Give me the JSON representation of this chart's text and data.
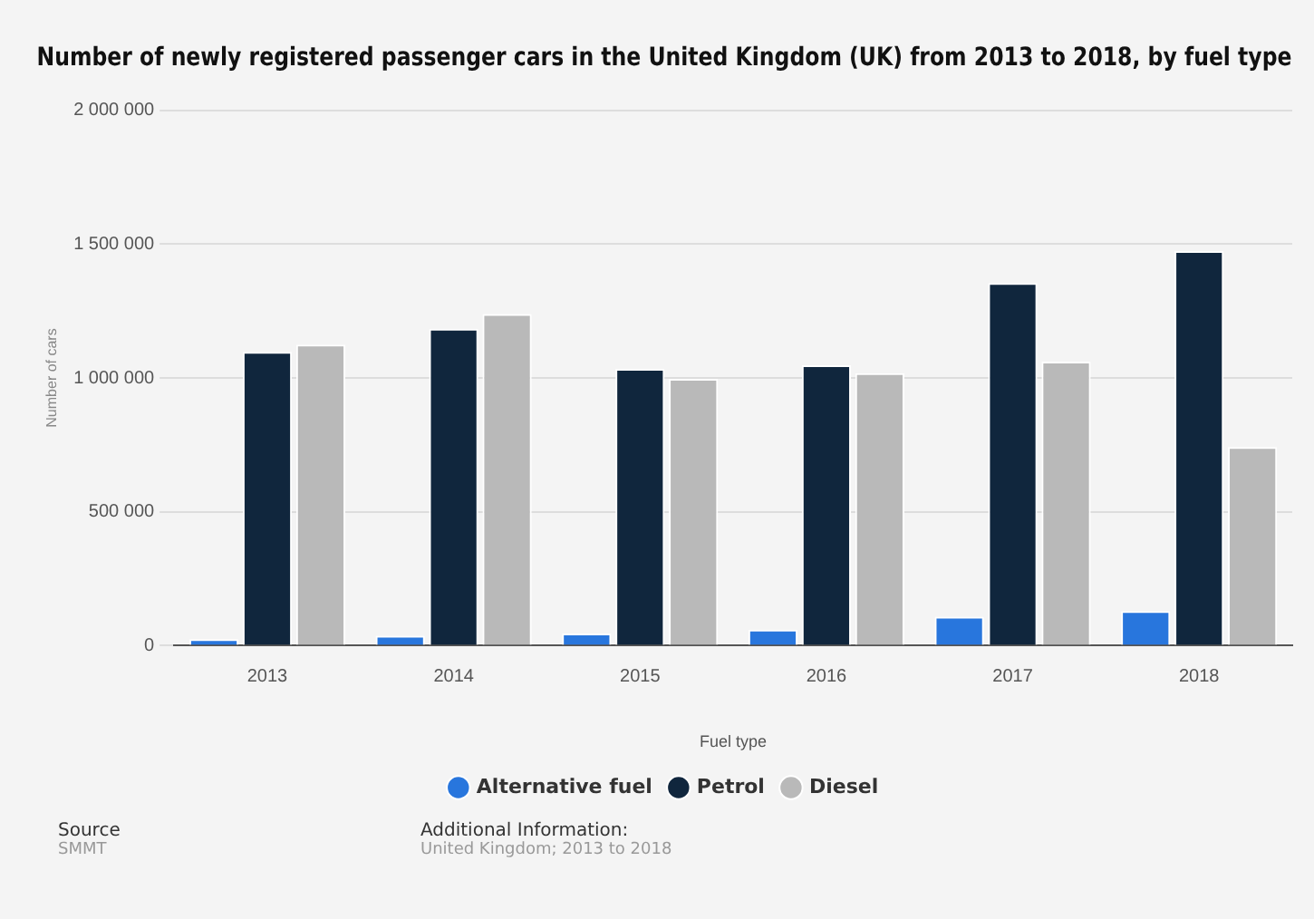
{
  "chart_data": {
    "type": "bar",
    "title": "Number of newly registered passenger cars in the United Kingdom (UK) from 2013 to 2018, by fuel type",
    "xlabel": "Fuel type",
    "ylabel": "Number of cars",
    "categories": [
      "2013",
      "2014",
      "2015",
      "2016",
      "2017",
      "2018"
    ],
    "series": [
      {
        "name": "Alternative fuel",
        "color": "#2876dd",
        "values": [
          24000,
          37000,
          45000,
          60000,
          108000,
          129000
        ]
      },
      {
        "name": "Petrol",
        "color": "#10263d",
        "values": [
          1097000,
          1184000,
          1034000,
          1047000,
          1355000,
          1474000
        ]
      },
      {
        "name": "Diesel",
        "color": "#b9b9b9",
        "values": [
          1124000,
          1239000,
          997000,
          1018000,
          1061000,
          742000
        ]
      }
    ],
    "ylim": [
      0,
      2000000
    ],
    "yticks": [
      {
        "value": 0,
        "label": "0"
      },
      {
        "value": 500000,
        "label": "500 000"
      },
      {
        "value": 1000000,
        "label": "1 000 000"
      },
      {
        "value": 1500000,
        "label": "1 500 000"
      },
      {
        "value": 2000000,
        "label": "2 000 000"
      }
    ],
    "grid": "y",
    "legend": "bottom",
    "annotations": [
      "Source",
      "SMMT",
      "Additional Information:",
      "United Kingdom; 2013 to 2018"
    ]
  }
}
